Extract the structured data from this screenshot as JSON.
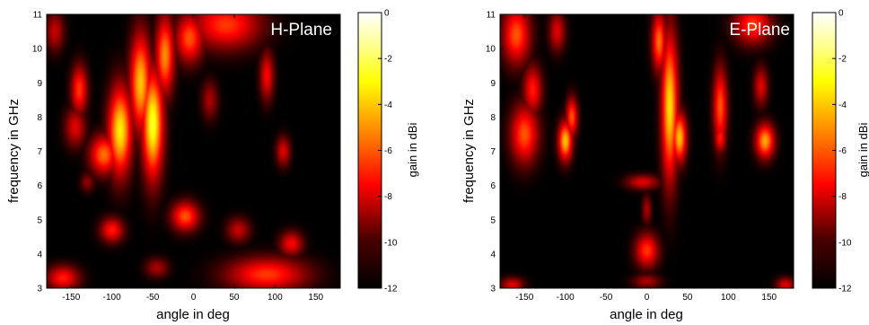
{
  "chart_data": [
    {
      "type": "heatmap",
      "title": "H-Plane",
      "xlabel": "angle in deg",
      "ylabel": "frequency in GHz",
      "xlim": [
        -180,
        180
      ],
      "ylim": [
        3,
        11
      ],
      "xticks": [
        -150,
        -100,
        -50,
        0,
        50,
        100,
        150
      ],
      "yticks": [
        3,
        4,
        5,
        6,
        7,
        8,
        9,
        10,
        11
      ],
      "colorbar": {
        "label": "gain in dBi",
        "range": [
          -12,
          0
        ],
        "ticks": [
          0,
          -2,
          -4,
          -6,
          -8,
          -10,
          -12
        ],
        "colormap": "hot"
      },
      "background_gain": -12,
      "blobs": [
        {
          "x": -90,
          "y": 7.6,
          "sx": 10,
          "sy": 0.9,
          "rot": -0.5,
          "gain": -3.2
        },
        {
          "x": -65,
          "y": 9.0,
          "sx": 9,
          "sy": 1.0,
          "rot": -0.6,
          "gain": -4.0
        },
        {
          "x": -50,
          "y": 7.8,
          "sx": 9,
          "sy": 1.1,
          "rot": -0.4,
          "gain": -2.5
        },
        {
          "x": -35,
          "y": 9.8,
          "sx": 8,
          "sy": 0.8,
          "rot": -0.5,
          "gain": -5.0
        },
        {
          "x": -140,
          "y": 8.8,
          "sx": 7,
          "sy": 0.5,
          "rot": -0.3,
          "gain": -6.5
        },
        {
          "x": -145,
          "y": 7.7,
          "sx": 9,
          "sy": 0.4,
          "rot": 0.0,
          "gain": -8.0
        },
        {
          "x": -110,
          "y": 6.9,
          "sx": 12,
          "sy": 0.4,
          "rot": 0.0,
          "gain": -5.5
        },
        {
          "x": -5,
          "y": 10.3,
          "sx": 12,
          "sy": 0.5,
          "rot": 0.0,
          "gain": -6.0
        },
        {
          "x": 40,
          "y": 10.7,
          "sx": 30,
          "sy": 0.5,
          "rot": 0.0,
          "gain": -6.5
        },
        {
          "x": 90,
          "y": 9.2,
          "sx": 6,
          "sy": 0.5,
          "rot": 0.0,
          "gain": -7.5
        },
        {
          "x": 110,
          "y": 7.0,
          "sx": 6,
          "sy": 0.3,
          "rot": 0.0,
          "gain": -8.0
        },
        {
          "x": 20,
          "y": 8.5,
          "sx": 7,
          "sy": 0.4,
          "rot": 0.0,
          "gain": -9.0
        },
        {
          "x": -100,
          "y": 4.7,
          "sx": 10,
          "sy": 0.25,
          "rot": 0.0,
          "gain": -7.0
        },
        {
          "x": -10,
          "y": 5.1,
          "sx": 12,
          "sy": 0.3,
          "rot": 0.0,
          "gain": -6.0
        },
        {
          "x": 55,
          "y": 4.7,
          "sx": 10,
          "sy": 0.25,
          "rot": 0.0,
          "gain": -8.5
        },
        {
          "x": 120,
          "y": 4.3,
          "sx": 10,
          "sy": 0.25,
          "rot": 0.0,
          "gain": -7.5
        },
        {
          "x": 90,
          "y": 3.4,
          "sx": 35,
          "sy": 0.35,
          "rot": 0.0,
          "gain": -6.5
        },
        {
          "x": -160,
          "y": 3.3,
          "sx": 14,
          "sy": 0.25,
          "rot": 0.0,
          "gain": -7.0
        },
        {
          "x": -45,
          "y": 3.6,
          "sx": 10,
          "sy": 0.2,
          "rot": 0.0,
          "gain": -9.0
        },
        {
          "x": -130,
          "y": 6.1,
          "sx": 6,
          "sy": 0.2,
          "rot": 0.0,
          "gain": -9.5
        },
        {
          "x": -170,
          "y": 10.5,
          "sx": 8,
          "sy": 0.4,
          "rot": 0.0,
          "gain": -8.5
        }
      ]
    },
    {
      "type": "heatmap",
      "title": "E-Plane",
      "xlabel": "angle in deg",
      "ylabel": "frequency in GHz",
      "xlim": [
        -180,
        180
      ],
      "ylim": [
        3,
        11
      ],
      "xticks": [
        -150,
        -100,
        -50,
        0,
        50,
        100,
        150
      ],
      "yticks": [
        3,
        4,
        5,
        6,
        7,
        8,
        9,
        10,
        11
      ],
      "colorbar": {
        "label": "gain in dBi",
        "range": [
          -12,
          0
        ],
        "ticks": [
          0,
          -2,
          -4,
          -6,
          -8,
          -10,
          -12
        ],
        "colormap": "hot"
      },
      "background_gain": -12,
      "blobs": [
        {
          "x": 28,
          "y": 8.3,
          "sx": 7,
          "sy": 1.5,
          "rot": 0.25,
          "gain": -3.5
        },
        {
          "x": 15,
          "y": 10.2,
          "sx": 6,
          "sy": 0.6,
          "rot": 0.2,
          "gain": -5.5
        },
        {
          "x": 40,
          "y": 7.4,
          "sx": 6,
          "sy": 0.5,
          "rot": 0.0,
          "gain": -4.0
        },
        {
          "x": -100,
          "y": 7.3,
          "sx": 6,
          "sy": 0.4,
          "rot": 0.0,
          "gain": -4.0
        },
        {
          "x": -92,
          "y": 8.0,
          "sx": 5,
          "sy": 0.4,
          "rot": 0.0,
          "gain": -6.0
        },
        {
          "x": -150,
          "y": 7.5,
          "sx": 12,
          "sy": 0.6,
          "rot": 0.4,
          "gain": -6.0
        },
        {
          "x": -140,
          "y": 8.8,
          "sx": 8,
          "sy": 0.5,
          "rot": 0.0,
          "gain": -7.0
        },
        {
          "x": -160,
          "y": 10.4,
          "sx": 12,
          "sy": 0.6,
          "rot": 0.0,
          "gain": -6.0
        },
        {
          "x": -110,
          "y": 10.5,
          "sx": 7,
          "sy": 0.4,
          "rot": 0.0,
          "gain": -8.0
        },
        {
          "x": 90,
          "y": 8.3,
          "sx": 6,
          "sy": 0.8,
          "rot": 0.2,
          "gain": -6.0
        },
        {
          "x": 130,
          "y": 10.7,
          "sx": 16,
          "sy": 0.4,
          "rot": 0.0,
          "gain": -6.5
        },
        {
          "x": 140,
          "y": 8.9,
          "sx": 6,
          "sy": 0.4,
          "rot": 0.0,
          "gain": -8.0
        },
        {
          "x": 145,
          "y": 7.3,
          "sx": 8,
          "sy": 0.35,
          "rot": 0.0,
          "gain": -4.5
        },
        {
          "x": 90,
          "y": 7.4,
          "sx": 5,
          "sy": 0.3,
          "rot": 0.0,
          "gain": -7.0
        },
        {
          "x": -5,
          "y": 6.1,
          "sx": 14,
          "sy": 0.15,
          "rot": 0.0,
          "gain": -8.0
        },
        {
          "x": 0,
          "y": 4.1,
          "sx": 10,
          "sy": 0.35,
          "rot": 0.0,
          "gain": -6.5
        },
        {
          "x": 0,
          "y": 5.3,
          "sx": 4,
          "sy": 0.3,
          "rot": 0.0,
          "gain": -9.0
        },
        {
          "x": -165,
          "y": 3.1,
          "sx": 10,
          "sy": 0.15,
          "rot": 0.0,
          "gain": -8.0
        },
        {
          "x": 170,
          "y": 3.1,
          "sx": 8,
          "sy": 0.15,
          "rot": 0.0,
          "gain": -8.0
        },
        {
          "x": 0,
          "y": 3.2,
          "sx": 12,
          "sy": 0.15,
          "rot": 0.0,
          "gain": -9.0
        }
      ]
    }
  ]
}
